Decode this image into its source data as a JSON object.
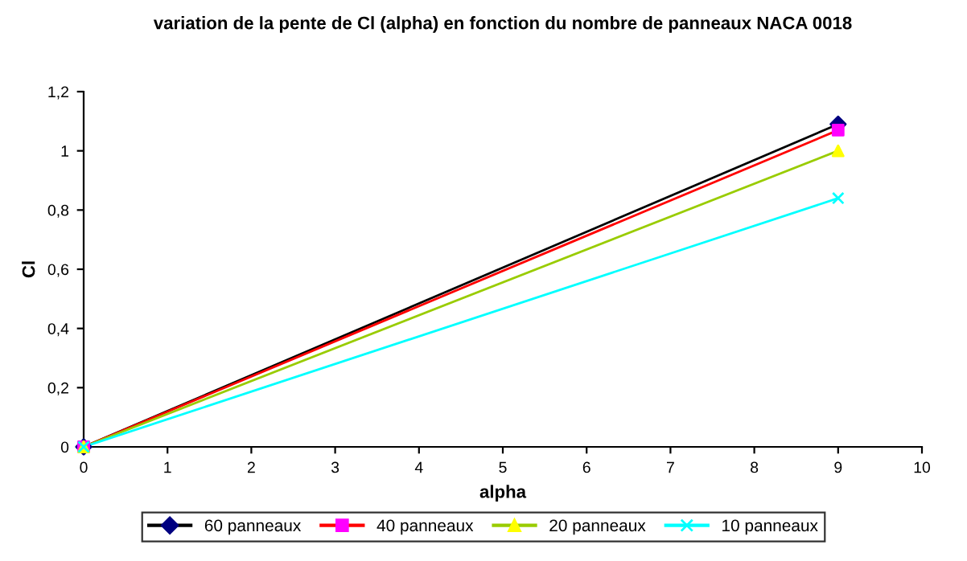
{
  "chart_data": {
    "type": "line",
    "title": "variation de la pente de Cl (alpha) en fonction du nombre de panneaux NACA 0018",
    "xlabel": "alpha",
    "ylabel": "Cl",
    "x": [
      0,
      9
    ],
    "series": [
      {
        "name": "60 panneaux",
        "color": "#000000",
        "colors": [
          "#000080",
          "#000080"
        ],
        "marker": "diamond",
        "values": [
          0,
          1.09
        ]
      },
      {
        "name": "40 panneaux",
        "color": "#ff0000",
        "colors": [
          "#ff00ff",
          "#ff00ff"
        ],
        "marker": "square",
        "values": [
          0,
          1.07
        ]
      },
      {
        "name": "20 panneaux",
        "color": "#99cc00",
        "colors": [
          "#ffff00",
          "#ffff00"
        ],
        "marker": "triangle",
        "values": [
          0,
          1.0
        ]
      },
      {
        "name": "10 panneaux",
        "color": "#00ffff",
        "colors": [
          "#00ffff",
          "#00ffff"
        ],
        "marker": "cross",
        "values": [
          0,
          0.84
        ]
      }
    ],
    "xlim": [
      0,
      10
    ],
    "xticks": [
      0,
      1,
      2,
      3,
      4,
      5,
      6,
      7,
      8,
      9,
      10
    ],
    "ylim": [
      0,
      1.2
    ],
    "yticks": [
      0,
      {
        "value": 0.2,
        "label": "0,2"
      },
      {
        "value": 0.4,
        "label": "0,4"
      },
      {
        "value": 0.6,
        "label": "0,6"
      },
      {
        "value": 0.8,
        "label": "0,8"
      },
      1,
      {
        "value": 1.2,
        "label": "1,2"
      }
    ],
    "grid": false,
    "legend": "bottom",
    "line_style": "solid"
  }
}
